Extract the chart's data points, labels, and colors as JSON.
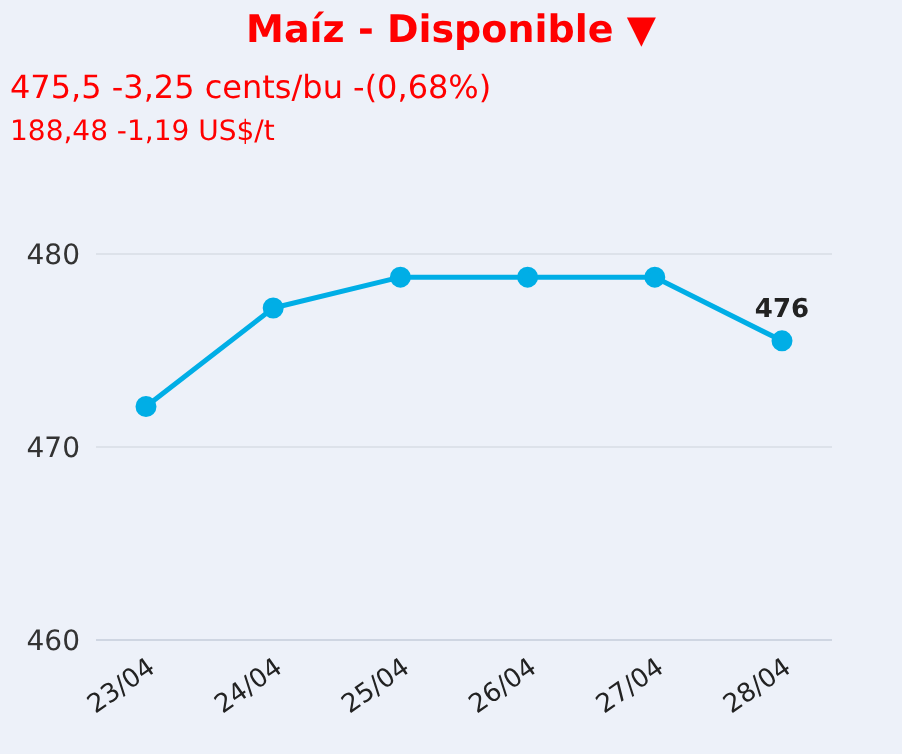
{
  "chart_data": {
    "type": "line",
    "title": "Maíz - Disponible ▼",
    "subtitle": "475,5 -3,25 cents/bu -(0,68%)",
    "annotations": [
      "188,48 -1,19 US$/t"
    ],
    "categories": [
      "23/04",
      "24/04",
      "25/04",
      "26/04",
      "27/04",
      "28/04"
    ],
    "series": [
      {
        "color": "#00aee6",
        "values": [
          472.1,
          477.2,
          478.8,
          478.8,
          478.8,
          475.5
        ],
        "value_labels": [
          null,
          null,
          null,
          null,
          null,
          "476"
        ]
      }
    ],
    "ylim": [
      460,
      480
    ],
    "yticks": [
      460,
      470,
      480
    ],
    "grid": "y",
    "marker": "circle",
    "line_style": "solid"
  }
}
